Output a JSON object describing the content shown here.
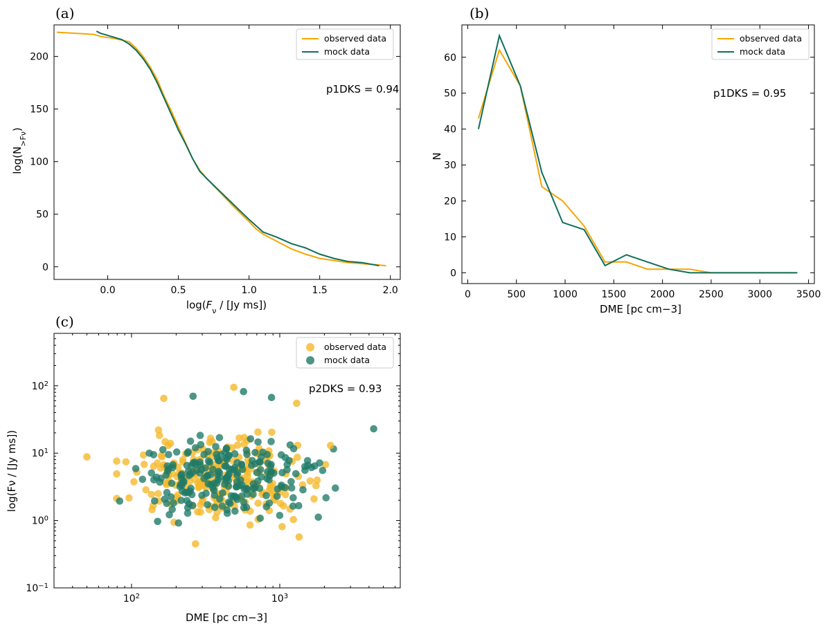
{
  "chart_data": [
    {
      "id": "a",
      "panel_label": "(a)",
      "type": "line",
      "xlabel": "log(Fν / [Jy ms])",
      "ylabel": "log(N>Fν)",
      "xlim": [
        -0.38,
        2.07
      ],
      "ylim": [
        -12,
        230
      ],
      "xticks": [
        0.0,
        0.5,
        1.0,
        1.5,
        2.0
      ],
      "xtick_labels": [
        "0.0",
        "0.5",
        "1.0",
        "1.5",
        "2.0"
      ],
      "yticks": [
        0,
        50,
        100,
        150,
        200
      ],
      "ytick_labels": [
        "0",
        "50",
        "100",
        "150",
        "200"
      ],
      "annotation": "p1DKS = 0.94",
      "legend": [
        "observed data",
        "mock data"
      ],
      "series": [
        {
          "name": "observed data",
          "color": "#f5a500",
          "x": [
            -0.36,
            -0.1,
            -0.05,
            0.05,
            0.15,
            0.2,
            0.25,
            0.3,
            0.35,
            0.4,
            0.45,
            0.5,
            0.55,
            0.6,
            0.65,
            0.7,
            0.8,
            0.9,
            1.0,
            1.05,
            1.1,
            1.2,
            1.3,
            1.4,
            1.5,
            1.6,
            1.7,
            1.8,
            1.9,
            1.97
          ],
          "y": [
            223,
            221,
            219,
            217,
            214,
            208,
            200,
            190,
            178,
            162,
            148,
            133,
            118,
            103,
            92,
            84,
            70,
            56,
            43,
            36,
            31,
            24,
            17,
            12,
            8,
            6,
            4,
            3,
            2,
            1
          ]
        },
        {
          "name": "mock data",
          "color": "#0e6e5c",
          "x": [
            -0.08,
            -0.05,
            0.0,
            0.1,
            0.15,
            0.2,
            0.25,
            0.3,
            0.35,
            0.4,
            0.45,
            0.5,
            0.55,
            0.6,
            0.65,
            0.7,
            0.8,
            0.9,
            1.0,
            1.1,
            1.2,
            1.3,
            1.4,
            1.5,
            1.6,
            1.7,
            1.8,
            1.92
          ],
          "y": [
            224,
            222,
            220,
            216,
            212,
            206,
            198,
            188,
            175,
            160,
            145,
            130,
            117,
            103,
            91,
            84,
            71,
            58,
            45,
            33,
            28,
            22,
            18,
            12,
            8,
            5,
            4,
            1
          ]
        }
      ]
    },
    {
      "id": "b",
      "panel_label": "(b)",
      "type": "line",
      "xlabel": "DME [pc cm−3]",
      "ylabel": "N",
      "xlim": [
        -60,
        3560
      ],
      "ylim": [
        -3,
        69
      ],
      "xticks": [
        0,
        500,
        1000,
        1500,
        2000,
        2500,
        3000,
        3500
      ],
      "xtick_labels": [
        "0",
        "500",
        "1000",
        "1500",
        "2000",
        "2500",
        "3000",
        "3500"
      ],
      "yticks": [
        0,
        10,
        20,
        30,
        40,
        50,
        60
      ],
      "ytick_labels": [
        "0",
        "10",
        "20",
        "30",
        "40",
        "50",
        "60"
      ],
      "annotation": "p1DKS = 0.95",
      "legend": [
        "observed data",
        "mock data"
      ],
      "series": [
        {
          "name": "observed data",
          "color": "#f5a500",
          "x": [
            110,
            325,
            540,
            760,
            975,
            1195,
            1410,
            1630,
            1845,
            2065,
            2280,
            2500,
            2715,
            2935,
            3150,
            3385
          ],
          "y": [
            43,
            62,
            52,
            24,
            20,
            13,
            3,
            3,
            1,
            1,
            1,
            0,
            0,
            0,
            0,
            0
          ]
        },
        {
          "name": "mock data",
          "color": "#0e6e5c",
          "x": [
            110,
            325,
            540,
            760,
            975,
            1195,
            1410,
            1630,
            1845,
            2065,
            2280,
            2500,
            2715,
            2935,
            3150,
            3385
          ],
          "y": [
            40,
            66,
            52,
            28,
            14,
            12,
            2,
            5,
            3,
            1,
            0,
            0,
            0,
            0,
            0,
            0
          ]
        }
      ]
    },
    {
      "id": "c",
      "panel_label": "(c)",
      "type": "scatter",
      "xlabel": "DME [pc cm−3]",
      "ylabel": "log(Fν / [Jy ms])",
      "xscale": "log",
      "yscale": "log",
      "xlim": [
        30,
        6500
      ],
      "ylim": [
        0.1,
        600
      ],
      "xticks": [
        100,
        1000
      ],
      "xtick_labels": [
        "10^2",
        "10^3"
      ],
      "yticks": [
        0.1,
        1,
        10,
        100
      ],
      "ytick_labels": [
        "10^-1",
        "10^0",
        "10^1",
        "10^2"
      ],
      "annotation": "p2DKS = 0.93",
      "legend": [
        "observed data",
        "mock data"
      ],
      "series": [
        {
          "name": "observed data",
          "color": "#f5b82a",
          "n": 230
        },
        {
          "name": "mock data",
          "color": "#1f7a68",
          "n": 230
        }
      ],
      "highlighted_points": [
        {
          "x": 490,
          "y": 95,
          "series": "observed data"
        },
        {
          "x": 165,
          "y": 65,
          "series": "observed data"
        },
        {
          "x": 1300,
          "y": 55,
          "series": "observed data"
        },
        {
          "x": 50,
          "y": 8.8,
          "series": "observed data"
        },
        {
          "x": 270,
          "y": 0.45,
          "series": "observed data"
        },
        {
          "x": 1350,
          "y": 0.57,
          "series": "observed data"
        },
        {
          "x": 2200,
          "y": 13,
          "series": "observed data"
        },
        {
          "x": 4300,
          "y": 23,
          "series": "mock data"
        },
        {
          "x": 260,
          "y": 70,
          "series": "mock data"
        },
        {
          "x": 570,
          "y": 82,
          "series": "mock data"
        },
        {
          "x": 880,
          "y": 67,
          "series": "mock data"
        },
        {
          "x": 150,
          "y": 0.97,
          "series": "mock data"
        }
      ]
    }
  ]
}
